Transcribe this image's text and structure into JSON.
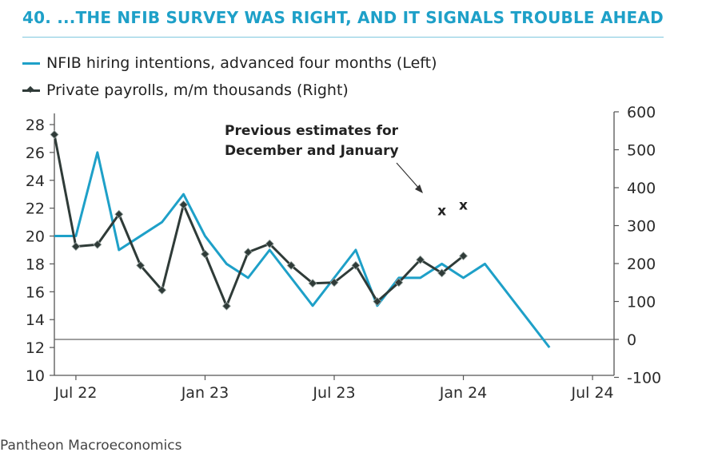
{
  "title": "40.  ...THE NFIB SURVEY WAS RIGHT, AND IT SIGNALS TROUBLE AHEAD",
  "footer": "Pantheon Macroeconomics",
  "colors": {
    "nfib": "#1ea0c8",
    "payrolls": "#2f3b38",
    "zero_line": "#666666"
  },
  "chart_data": {
    "type": "line",
    "title": "40.  ...THE NFIB SURVEY WAS RIGHT, AND IT SIGNALS TROUBLE AHEAD",
    "x_range": [
      "2022-06",
      "2024-08"
    ],
    "x_ticks": [
      "Jul 22",
      "Jan 23",
      "Jul 23",
      "Jan 24",
      "Jul 24"
    ],
    "y_left": {
      "min": 10,
      "max": 28,
      "ticks": [
        "10",
        "12",
        "14",
        "16",
        "18",
        "20",
        "22",
        "24",
        "26",
        "28"
      ]
    },
    "y_right": {
      "min": -100,
      "max": 600,
      "ticks": [
        "-100",
        "0",
        "100",
        "200",
        "300",
        "400",
        "500",
        "600"
      ]
    },
    "legend": {
      "position": "top-left"
    },
    "series": [
      {
        "name": "NFIB hiring intentions, advanced four months (Left)",
        "axis": "left",
        "x": [
          "2022-06",
          "2022-07",
          "2022-08",
          "2022-09",
          "2022-10",
          "2022-11",
          "2022-12",
          "2023-01",
          "2023-02",
          "2023-03",
          "2023-04",
          "2023-05",
          "2023-06",
          "2023-07",
          "2023-08",
          "2023-09",
          "2023-10",
          "2023-11",
          "2023-12",
          "2024-01",
          "2024-02",
          "2024-03",
          "2024-04",
          "2024-05",
          "2024-06",
          "2024-07"
        ],
        "values": [
          20,
          20,
          26,
          19,
          20,
          21,
          23,
          20,
          18,
          17,
          19,
          17,
          15,
          17,
          19,
          15,
          17,
          17,
          18,
          17,
          18,
          16,
          14,
          12,
          null,
          null
        ]
      },
      {
        "name": "Private payrolls, m/m thousands (Right)",
        "axis": "right",
        "x": [
          "2022-06",
          "2022-07",
          "2022-08",
          "2022-09",
          "2022-10",
          "2022-11",
          "2022-12",
          "2023-01",
          "2023-02",
          "2023-03",
          "2023-04",
          "2023-05",
          "2023-06",
          "2023-07",
          "2023-08",
          "2023-09",
          "2023-10",
          "2023-11",
          "2023-12",
          "2024-01",
          "2024-02"
        ],
        "values": [
          540,
          245,
          250,
          330,
          195,
          130,
          355,
          225,
          88,
          230,
          252,
          195,
          148,
          150,
          195,
          100,
          150,
          210,
          175,
          220,
          null
        ]
      }
    ],
    "markers": {
      "label": "x",
      "x": [
        "2023-12",
        "2024-01"
      ],
      "values": [
        340,
        355
      ]
    },
    "annotation": {
      "lines": [
        "Previous estimates for",
        "December and January"
      ]
    }
  }
}
